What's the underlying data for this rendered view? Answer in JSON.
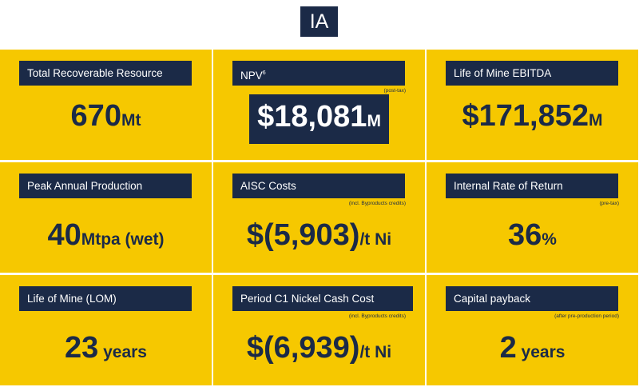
{
  "badge": "IA",
  "cards": [
    {
      "label": "Total Recoverable Resource",
      "value": "670",
      "unit": "Mt"
    },
    {
      "label": "NPV",
      "label_sup": "6",
      "note": "(post-tax)",
      "value": "$18,081",
      "unit": "M"
    },
    {
      "label": "Life of Mine EBITDA",
      "value": "$171,852",
      "unit": "M"
    },
    {
      "label": "Peak Annual Production",
      "value": "40",
      "unit": "Mtpa (wet)"
    },
    {
      "label": "AISC Costs",
      "note": "(incl. Byproducts credits)",
      "value": "$(5,903)",
      "unit": "/t Ni"
    },
    {
      "label": "Internal Rate of Return",
      "note": "(pre-tax)",
      "value": "36",
      "unit": "%"
    },
    {
      "label": "Life of Mine (LOM)",
      "value": "23",
      "unit": " years"
    },
    {
      "label": "Period C1 Nickel Cash Cost",
      "note": "(incl. Byproducts credits)",
      "value": "$(6,939)",
      "unit": "/t Ni"
    },
    {
      "label": "Capital payback",
      "note": "(after pre-production period)",
      "value": "2",
      "unit": " years"
    }
  ],
  "colors": {
    "card_bg": "#f6c800",
    "navy": "#1b2a47"
  }
}
